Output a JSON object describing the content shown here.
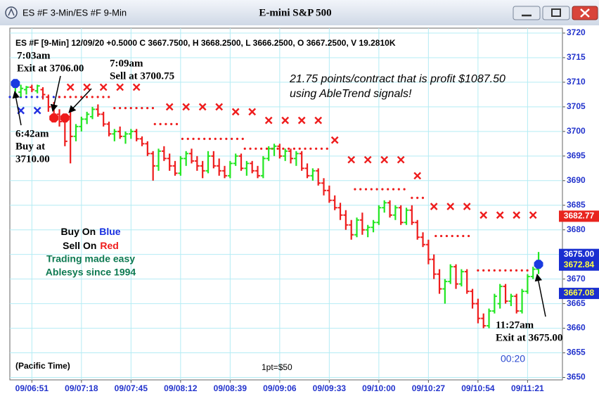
{
  "chart_data": {
    "type": "ohlc",
    "window_title": "ES #F 3-Min/ES #F 9-Min",
    "title": "E-mini S&P 500",
    "info": "ES #F [9-Min] 12/09/20 +0.5000 C 3667.7500, H 3668.2500, L 3666.2500, O 3667.2500, V 19.2810K",
    "x": [
      "09/06:42",
      "09/06:45",
      "09/06:48",
      "09/06:51",
      "09/06:54",
      "09/06:57",
      "09/07:00",
      "09/07:03",
      "09/07:06",
      "09/07:09",
      "09/07:12",
      "09/07:15",
      "09/07:18",
      "09/07:21",
      "09/07:24",
      "09/07:27",
      "09/07:30",
      "09/07:33",
      "09/07:36",
      "09/07:39",
      "09/07:42",
      "09/07:45",
      "09/07:48",
      "09/07:51",
      "09/07:54",
      "09/07:57",
      "09/08:00",
      "09/08:03",
      "09/08:06",
      "09/08:09",
      "09/08:12",
      "09/08:15",
      "09/08:18",
      "09/08:21",
      "09/08:24",
      "09/08:27",
      "09/08:30",
      "09/08:33",
      "09/08:36",
      "09/08:39",
      "09/08:42",
      "09/08:45",
      "09/08:48",
      "09/08:51",
      "09/08:54",
      "09/08:57",
      "09/09:00",
      "09/09:03",
      "09/09:06",
      "09/09:09",
      "09/09:12",
      "09/09:15",
      "09/09:18",
      "09/09:21",
      "09/09:24",
      "09/09:27",
      "09/09:30",
      "09/09:33",
      "09/09:36",
      "09/09:39",
      "09/09:42",
      "09/09:45",
      "09/09:48",
      "09/09:51",
      "09/09:54",
      "09/09:57",
      "09/10:00",
      "09/10:03",
      "09/10:06",
      "09/10:09",
      "09/10:12",
      "09/10:15",
      "09/10:18",
      "09/10:21",
      "09/10:24",
      "09/10:27",
      "09/10:30",
      "09/10:33",
      "09/10:36",
      "09/10:39",
      "09/10:42",
      "09/10:45",
      "09/10:48",
      "09/10:51",
      "09/10:54",
      "09/10:57",
      "09/11:00",
      "09/11:03",
      "09/11:06",
      "09/11:09",
      "09/11:12",
      "09/11:15",
      "09/11:18",
      "09/11:21",
      "09/11:24",
      "09/11:27"
    ],
    "open": [
      3709,
      3708,
      3708.5,
      3709,
      3708.25,
      3708.5,
      3707,
      3705,
      3703.5,
      3702,
      3703,
      3699,
      3701,
      3702.5,
      3703,
      3704.5,
      3703.5,
      3701.5,
      3699.5,
      3700,
      3699,
      3699.5,
      3700,
      3698.5,
      3697.5,
      3695.5,
      3693,
      3696,
      3694.5,
      3693,
      3691.5,
      3694.5,
      3695.5,
      3694,
      3693,
      3692,
      3695,
      3693,
      3692,
      3691,
      3693.5,
      3695,
      3692.5,
      3693.5,
      3692,
      3691,
      3694.5,
      3696.5,
      3697,
      3695,
      3696,
      3694.5,
      3695.5,
      3692.5,
      3691,
      3692,
      3689.5,
      3688,
      3686,
      3684.5,
      3683,
      3681,
      3679,
      3682,
      3680,
      3680.5,
      3681.5,
      3684.5,
      3685.5,
      3683,
      3684.5,
      3681.5,
      3684,
      3681.5,
      3678.5,
      3677,
      3674,
      3671,
      3668,
      3669.5,
      3672.5,
      3669,
      3671.5,
      3667.5,
      3665,
      3662,
      3660.5,
      3663.5,
      3665,
      3668.5,
      3665.5,
      3666.5,
      3663.5,
      3667.5,
      3670.5,
      3672
    ],
    "high": [
      3710,
      3709.5,
      3709.25,
      3709.5,
      3709.5,
      3709,
      3707.5,
      3706,
      3704.5,
      3703.5,
      3704,
      3701.5,
      3703,
      3704,
      3705,
      3705.5,
      3704,
      3702,
      3700.5,
      3701,
      3700,
      3700.5,
      3700.5,
      3699,
      3698,
      3696,
      3696.5,
      3697,
      3695.5,
      3694,
      3695,
      3696,
      3696.5,
      3695,
      3694,
      3696,
      3696,
      3694.5,
      3693,
      3694,
      3695.5,
      3695.5,
      3694,
      3694,
      3693,
      3695,
      3697,
      3697.5,
      3697.5,
      3696.5,
      3696.5,
      3696,
      3696,
      3693.5,
      3692.5,
      3692.5,
      3690.5,
      3689,
      3687,
      3685.5,
      3684,
      3682,
      3682.5,
      3683.5,
      3681,
      3682,
      3685,
      3686,
      3686,
      3685,
      3685,
      3684.5,
      3685,
      3682,
      3679.5,
      3678,
      3675,
      3672,
      3670,
      3673,
      3673,
      3672,
      3672,
      3668,
      3666,
      3663,
      3664,
      3667,
      3669,
      3669,
      3667,
      3667,
      3668,
      3671,
      3672.5,
      3675.5
    ],
    "low": [
      3708,
      3707,
      3707.5,
      3708,
      3707.75,
      3706.5,
      3704,
      3703,
      3701,
      3697,
      3693.5,
      3698,
      3700,
      3701.5,
      3702.5,
      3703,
      3701,
      3699,
      3698,
      3698.5,
      3697.5,
      3698.5,
      3698,
      3697,
      3695,
      3690,
      3692,
      3694,
      3692,
      3691,
      3691,
      3693,
      3693.5,
      3692,
      3690.5,
      3691.5,
      3692.5,
      3691,
      3690.5,
      3690.5,
      3693,
      3692,
      3691,
      3691.5,
      3690.5,
      3690.5,
      3694,
      3695,
      3694.5,
      3694,
      3693.5,
      3693,
      3692,
      3690.5,
      3690,
      3689,
      3687,
      3685.5,
      3684,
      3682,
      3680,
      3678,
      3678.5,
      3679,
      3678.5,
      3679.5,
      3681,
      3683.5,
      3682.5,
      3682,
      3681,
      3681,
      3681,
      3678,
      3676.5,
      3673,
      3670,
      3667,
      3665,
      3669,
      3668,
      3668.5,
      3667,
      3664,
      3661,
      3660,
      3660,
      3663,
      3664,
      3665,
      3664.5,
      3663,
      3663,
      3667,
      3670,
      3671
    ],
    "close": [
      3709.5,
      3708.75,
      3709,
      3708.5,
      3709.25,
      3707.5,
      3705,
      3703.5,
      3702,
      3698,
      3699,
      3701,
      3702.5,
      3703.5,
      3704.5,
      3703.5,
      3701.5,
      3699.5,
      3700,
      3699,
      3699.5,
      3700,
      3698.5,
      3697.5,
      3695.5,
      3693,
      3696,
      3694.5,
      3693,
      3691.5,
      3694.5,
      3695.5,
      3694,
      3693,
      3692,
      3695,
      3693,
      3692,
      3691,
      3693.5,
      3695,
      3692.5,
      3693.5,
      3692,
      3691,
      3694.5,
      3696.5,
      3697,
      3695,
      3696,
      3694.5,
      3695.5,
      3692.5,
      3691,
      3692,
      3689.5,
      3688,
      3686,
      3684.5,
      3683,
      3681,
      3679,
      3682,
      3680,
      3680.5,
      3681.5,
      3684.5,
      3685.5,
      3683,
      3684.5,
      3681.5,
      3684,
      3681.5,
      3678.5,
      3677,
      3674,
      3671,
      3668,
      3669.5,
      3672.5,
      3669,
      3671.5,
      3667.5,
      3665,
      3662,
      3660.5,
      3663.5,
      3666.5,
      3668.5,
      3665.5,
      3666.5,
      3663.5,
      3667.5,
      3670.5,
      3672,
      3673
    ],
    "up_color": "#22e622",
    "down_color": "#ee1c1c",
    "xlim": [
      "09/06:39",
      "09/11:40"
    ],
    "xticks": [
      "09/06:51",
      "09/07:18",
      "09/07:45",
      "09/08:12",
      "09/08:39",
      "09/09:06",
      "09/09:33",
      "09/10:00",
      "09/10:27",
      "09/10:54",
      "09/11:21"
    ],
    "ylim": [
      3649.5,
      3721
    ],
    "yticks": [
      3650,
      3655,
      3660,
      3665,
      3670,
      3675,
      3680,
      3685,
      3690,
      3695,
      3700,
      3705,
      3710,
      3715,
      3720
    ],
    "grid": true,
    "stop_marks": [
      {
        "color": "#2230e0",
        "x": [
          "09/06:45",
          "09/06:54"
        ],
        "values": [
          3704.25,
          3704.25
        ]
      },
      {
        "color": "#ee1c1c",
        "x": [
          "09/07:12",
          "09/07:21",
          "09/07:30",
          "09/07:39",
          "09/07:48",
          "09/08:06",
          "09/08:15",
          "09/08:24",
          "09/08:33",
          "09/08:42",
          "09/08:51",
          "09/09:00",
          "09/09:09",
          "09/09:18",
          "09/09:27",
          "09/09:36",
          "09/09:45",
          "09/09:54",
          "09/10:03",
          "09/10:12",
          "09/10:21",
          "09/10:30",
          "09/10:39",
          "09/10:48",
          "09/10:57",
          "09/11:06",
          "09/11:15",
          "09/11:24"
        ],
        "values": [
          3709,
          3709,
          3709,
          3709,
          3709,
          3705,
          3705,
          3705,
          3705,
          3704,
          3704,
          3702.25,
          3702.25,
          3702.25,
          3702.25,
          3698.25,
          3694.25,
          3694.25,
          3694.25,
          3694.25,
          3691,
          3684.75,
          3684.75,
          3684.75,
          3683,
          3683,
          3683,
          3683
        ]
      }
    ],
    "dot_levels": [
      {
        "from": "09/06:39",
        "to": "09/07:06",
        "value": 3707,
        "color": "#2230e0"
      },
      {
        "from": "09/07:06",
        "to": "09/07:33",
        "value": 3707,
        "color": "#ee1c1c"
      },
      {
        "from": "09/07:36",
        "to": "09/07:57",
        "value": 3704.75,
        "color": "#ee1c1c"
      },
      {
        "from": "09/07:58",
        "to": "09/08:11",
        "value": 3701.5,
        "color": "#ee1c1c"
      },
      {
        "from": "09/08:13",
        "to": "09/08:46",
        "value": 3698.5,
        "color": "#ee1c1c"
      },
      {
        "from": "09/08:47",
        "to": "09/09:32",
        "value": 3696.5,
        "color": "#ee1c1c"
      },
      {
        "from": "09/09:47",
        "to": "09/10:14",
        "value": 3688.25,
        "color": "#ee1c1c"
      },
      {
        "from": "09/10:18",
        "to": "09/10:24",
        "value": 3686.5,
        "color": "#ee1c1c"
      },
      {
        "from": "09/10:31",
        "to": "09/10:50",
        "value": 3678.75,
        "color": "#ee1c1c"
      },
      {
        "from": "09/10:54",
        "to": "09/11:21",
        "value": 3671.75,
        "color": "#ee1c1c"
      }
    ],
    "signals": [
      {
        "x": "09/06:42",
        "value": 3709.75,
        "color": "#1a3be0"
      },
      {
        "x": "09/07:03",
        "value": 3702.75,
        "color": "#ee1c1c"
      },
      {
        "x": "09/07:09",
        "value": 3702.75,
        "color": "#ee1c1c"
      },
      {
        "x": "09/11:27",
        "value": 3673,
        "color": "#1a3be0"
      }
    ],
    "price_labels": [
      {
        "value": 3682.77,
        "color": "#e8251f",
        "text_color": "#ffffff"
      },
      {
        "value": 3675,
        "label": "3675.00",
        "color": "#1a2fd0",
        "text_color": "#ffffff"
      },
      {
        "value": 3672.84,
        "label": "3672.84",
        "color": "#1a2fd0",
        "text_color": "#ffff40"
      },
      {
        "value": 3667.08,
        "color": "#1a2fd0",
        "text_color": "#ffff40"
      }
    ],
    "annotations": {
      "exit1_time": "7:03am",
      "exit1_text": "Exit at 3706.00",
      "sell_time": "7:09am",
      "sell_text": "Sell at 3700.75",
      "buy_time": "6:42am",
      "buy_text": "Buy at",
      "buy_price": "3710.00",
      "profit_line1": "21.75 points/contract that is profit $1087.50",
      "profit_line2": "using AbleTrend signals!",
      "buy_on": "Buy On",
      "buy_color_word": "Blue",
      "sell_on": "Sell On",
      "sell_color_word": "Red",
      "tagline": "Trading made easy",
      "company": "Ablesys since 1994",
      "timezone": "(Pacific Time)",
      "point_value": "1pt=$50",
      "timer": "00:20",
      "exit2_time": "11:27am",
      "exit2_text": "Exit at 3675.00"
    }
  }
}
